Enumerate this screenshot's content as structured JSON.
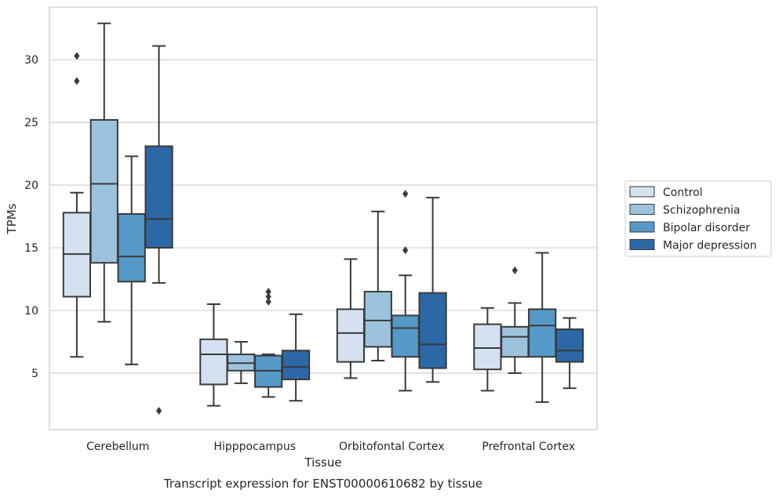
{
  "caption": "Transcript expression for ENST00000610682 by tissue",
  "chart_data": {
    "type": "box",
    "xlabel": "Tissue",
    "ylabel": "TPMs",
    "ylim": [
      0.5,
      34.2
    ],
    "yticks": [
      5,
      10,
      15,
      20,
      25,
      30
    ],
    "grid": "horizontal",
    "legend_position": "right",
    "categories": [
      "Cerebellum",
      "Hipppocampus",
      "Orbitofontal Cortex",
      "Prefrontal Cortex"
    ],
    "series": [
      {
        "name": "Control",
        "color": "#d4e1f0",
        "boxes": [
          {
            "whislo": 6.3,
            "q1": 11.1,
            "med": 14.5,
            "q3": 17.8,
            "whishi": 19.4,
            "fliers": [
              28.3,
              30.3
            ]
          },
          {
            "whislo": 2.4,
            "q1": 4.1,
            "med": 6.5,
            "q3": 7.7,
            "whishi": 10.5,
            "fliers": []
          },
          {
            "whislo": 4.6,
            "q1": 5.9,
            "med": 8.2,
            "q3": 10.1,
            "whishi": 14.1,
            "fliers": []
          },
          {
            "whislo": 3.6,
            "q1": 5.3,
            "med": 7.0,
            "q3": 8.9,
            "whishi": 10.2,
            "fliers": []
          }
        ]
      },
      {
        "name": "Schizophrenia",
        "color": "#9cc3de",
        "boxes": [
          {
            "whislo": 9.1,
            "q1": 13.8,
            "med": 20.1,
            "q3": 25.2,
            "whishi": 32.9,
            "fliers": []
          },
          {
            "whislo": 4.2,
            "q1": 5.2,
            "med": 5.8,
            "q3": 6.5,
            "whishi": 7.5,
            "fliers": []
          },
          {
            "whislo": 6.0,
            "q1": 7.1,
            "med": 9.2,
            "q3": 11.5,
            "whishi": 17.9,
            "fliers": []
          },
          {
            "whislo": 5.0,
            "q1": 6.3,
            "med": 7.9,
            "q3": 8.7,
            "whishi": 10.6,
            "fliers": [
              13.2
            ]
          }
        ]
      },
      {
        "name": "Bipolar disorder",
        "color": "#5599c8",
        "boxes": [
          {
            "whislo": 5.7,
            "q1": 12.3,
            "med": 14.3,
            "q3": 17.7,
            "whishi": 22.3,
            "fliers": []
          },
          {
            "whislo": 3.1,
            "q1": 3.9,
            "med": 5.2,
            "q3": 6.4,
            "whishi": 6.5,
            "fliers": [
              10.7,
              11.1,
              11.5
            ]
          },
          {
            "whislo": 3.6,
            "q1": 6.3,
            "med": 8.6,
            "q3": 9.6,
            "whishi": 12.8,
            "fliers": [
              14.8,
              19.3
            ]
          },
          {
            "whislo": 2.7,
            "q1": 6.3,
            "med": 8.8,
            "q3": 10.1,
            "whishi": 14.6,
            "fliers": []
          }
        ]
      },
      {
        "name": "Major depression",
        "color": "#2d68a6",
        "boxes": [
          {
            "whislo": 12.2,
            "q1": 15.0,
            "med": 17.3,
            "q3": 23.1,
            "whishi": 31.1,
            "fliers": [
              2.0
            ]
          },
          {
            "whislo": 2.8,
            "q1": 4.5,
            "med": 5.5,
            "q3": 6.8,
            "whishi": 9.7,
            "fliers": []
          },
          {
            "whislo": 4.3,
            "q1": 5.4,
            "med": 7.3,
            "q3": 11.4,
            "whishi": 19.0,
            "fliers": []
          },
          {
            "whislo": 3.8,
            "q1": 5.9,
            "med": 6.8,
            "q3": 8.5,
            "whishi": 9.4,
            "fliers": []
          }
        ]
      }
    ]
  }
}
